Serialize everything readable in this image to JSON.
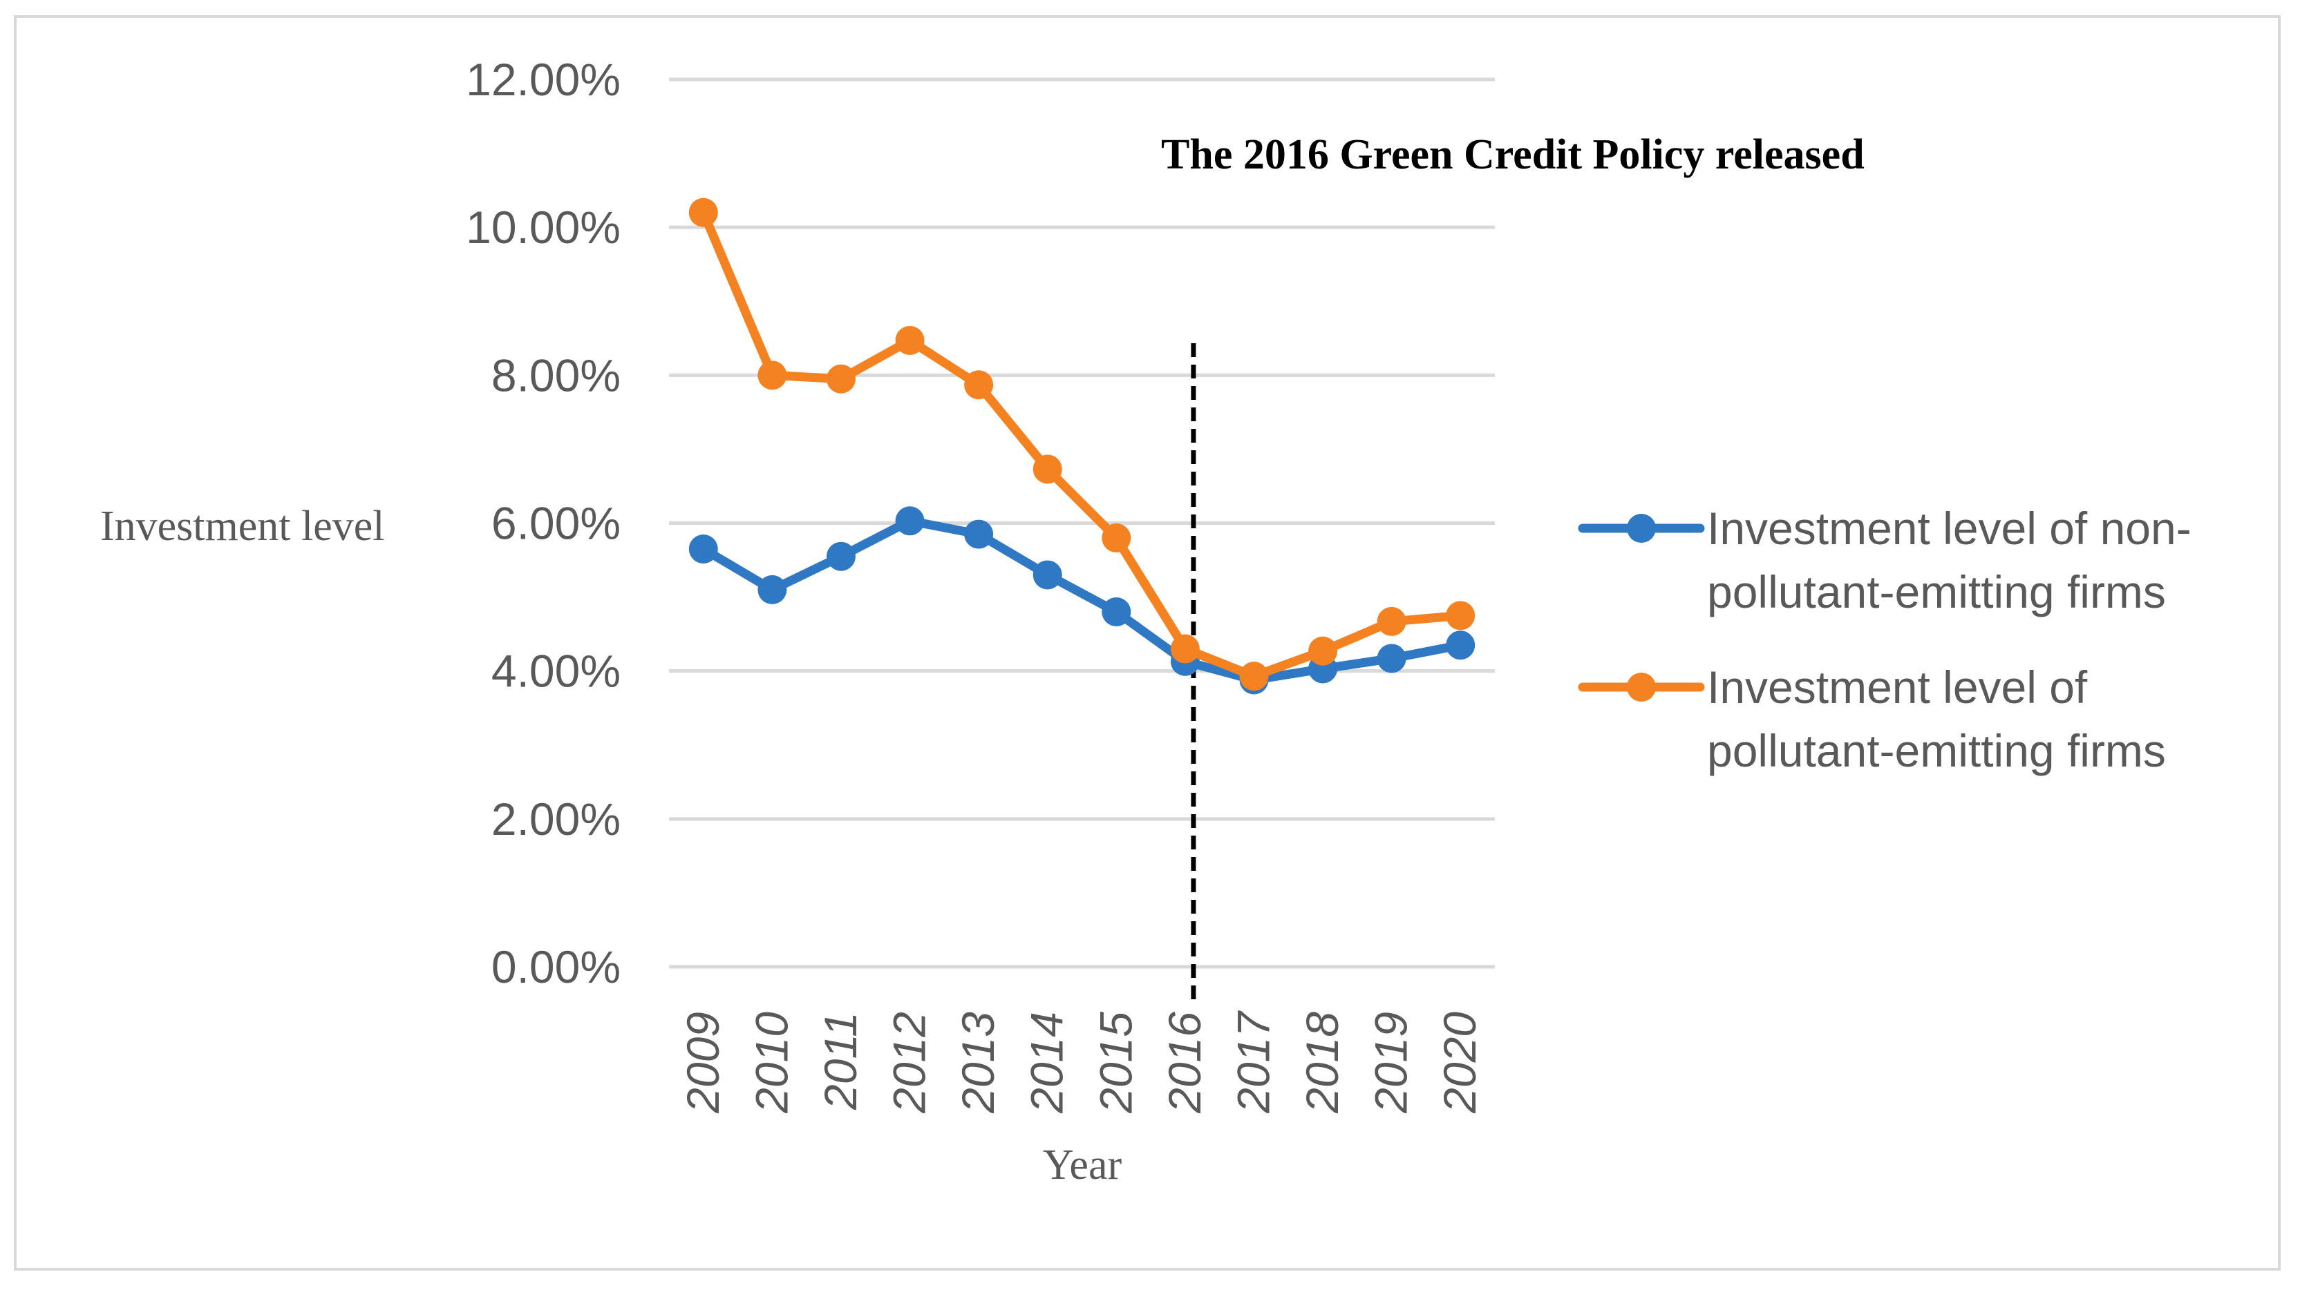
{
  "chart_data": {
    "type": "line",
    "title": "The 2016 Green Credit Policy released",
    "xlabel": "Year",
    "ylabel": "Investment level",
    "categories": [
      "2009",
      "2010",
      "2011",
      "2012",
      "2013",
      "2014",
      "2015",
      "2016",
      "2017",
      "2018",
      "2019",
      "2020"
    ],
    "ylim": [
      0,
      0.12
    ],
    "yticks": [
      0,
      0.02,
      0.04,
      0.06,
      0.08,
      0.1,
      0.12
    ],
    "ytick_labels": [
      "0.00%",
      "2.00%",
      "4.00%",
      "6.00%",
      "8.00%",
      "10.00%",
      "12.00%"
    ],
    "grid": true,
    "legend_position": "right",
    "annotation": {
      "type": "vertical-dashed-line",
      "at": "2016"
    },
    "series": [
      {
        "name": "Investment level of non-pollutant-emitting firms",
        "legend_lines": [
          "Investment level of non-",
          "pollutant-emitting firms"
        ],
        "color": "#2f78c4",
        "values": [
          0.0565,
          0.051,
          0.0555,
          0.0603,
          0.0585,
          0.053,
          0.048,
          0.0413,
          0.0388,
          0.0403,
          0.0417,
          0.0435
        ]
      },
      {
        "name": "Investment level of pollutant-emitting firms",
        "legend_lines": [
          "Investment level of",
          "pollutant-emitting firms"
        ],
        "color": "#f58220",
        "values": [
          0.102,
          0.08,
          0.0795,
          0.0847,
          0.0787,
          0.0673,
          0.058,
          0.043,
          0.0393,
          0.0427,
          0.0467,
          0.0475
        ]
      }
    ]
  }
}
